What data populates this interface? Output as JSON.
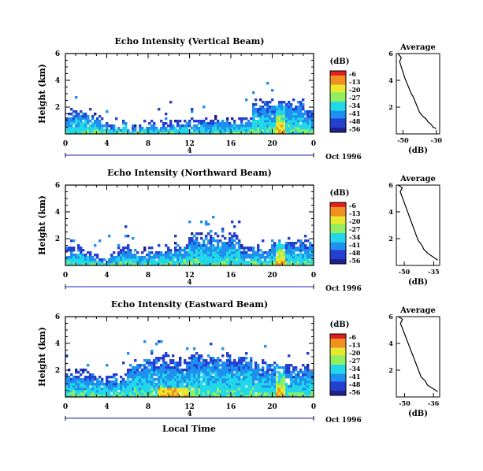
{
  "figure": {
    "xaxis_label": "Local Time",
    "date_label": "Oct 1996",
    "day_marker": "4",
    "colorbar_unit": "(dB)",
    "colorbar_ticks": [
      "-6",
      "-13",
      "-20",
      "-27",
      "-34",
      "-41",
      "-48",
      "-56"
    ],
    "colors": {
      "colormap": [
        "#20208a",
        "#2440d0",
        "#1e90f0",
        "#22d8e8",
        "#90ee60",
        "#e8e830",
        "#f09020",
        "#e02020"
      ],
      "axis": "#000000"
    }
  },
  "chart_data": [
    {
      "type": "heatmap",
      "title": "Echo Intensity (Vertical Beam)",
      "ylabel": "Height (km)",
      "xlim": [
        0,
        24
      ],
      "ylim": [
        0,
        6
      ],
      "xticks": [
        "0",
        "4",
        "8",
        "12",
        "16",
        "20",
        "0"
      ],
      "yticks": [
        "2",
        "4",
        "6"
      ],
      "clim": [
        -56,
        -6
      ],
      "profile": {
        "title": "Average",
        "xlabel": "(dB)",
        "xticks": [
          "-50",
          "-30"
        ],
        "xlim": [
          -54,
          -28
        ],
        "x": [
          -30,
          -32,
          -33,
          -35,
          -36,
          -38,
          -40,
          -41,
          -42,
          -43,
          -44,
          -45,
          -46,
          -47,
          -48,
          -49,
          -50,
          -51,
          -52,
          -51,
          -53
        ],
        "y": [
          0.4,
          0.5,
          0.7,
          0.9,
          1.1,
          1.3,
          1.6,
          1.9,
          2.2,
          2.5,
          2.8,
          3.0,
          3.3,
          3.6,
          3.9,
          4.2,
          4.6,
          5.0,
          5.4,
          5.7,
          6.0
        ]
      }
    },
    {
      "type": "heatmap",
      "title": "Echo Intensity (Northward Beam)",
      "ylabel": "Height (km)",
      "xlim": [
        0,
        24
      ],
      "ylim": [
        0,
        6
      ],
      "xticks": [
        "0",
        "4",
        "8",
        "12",
        "16",
        "20",
        "0"
      ],
      "yticks": [
        "2",
        "4",
        "6"
      ],
      "clim": [
        -56,
        -6
      ],
      "profile": {
        "title": "Average",
        "xlabel": "(dB)",
        "xticks": [
          "-50",
          "-35"
        ],
        "xlim": [
          -54,
          -32
        ],
        "x": [
          -33,
          -34,
          -36,
          -38,
          -40,
          -41,
          -43,
          -44,
          -45,
          -46,
          -47,
          -48,
          -49,
          -50,
          -51,
          -52,
          -51,
          -53
        ],
        "y": [
          0.4,
          0.5,
          0.7,
          0.9,
          1.2,
          1.5,
          1.9,
          2.3,
          2.7,
          3.1,
          3.5,
          3.9,
          4.3,
          4.7,
          5.1,
          5.5,
          5.8,
          6.0
        ]
      }
    },
    {
      "type": "heatmap",
      "title": "Echo Intensity (Eastward Beam)",
      "ylabel": "Height (km)",
      "xlim": [
        0,
        24
      ],
      "ylim": [
        0,
        6
      ],
      "xticks": [
        "0",
        "4",
        "8",
        "12",
        "16",
        "20",
        "0"
      ],
      "yticks": [
        "2",
        "4",
        "6"
      ],
      "clim": [
        -56,
        -6
      ],
      "profile": {
        "title": "Average",
        "xlabel": "(dB)",
        "xticks": [
          "-50",
          "-36"
        ],
        "xlim": [
          -54,
          -33
        ],
        "x": [
          -34,
          -35,
          -37,
          -39,
          -40,
          -42,
          -43,
          -44,
          -45,
          -46,
          -47,
          -48,
          -49,
          -50,
          -51,
          -52,
          -51,
          -53
        ],
        "y": [
          0.4,
          0.5,
          0.7,
          0.9,
          1.2,
          1.5,
          1.9,
          2.3,
          2.7,
          3.1,
          3.5,
          3.9,
          4.3,
          4.7,
          5.1,
          5.5,
          5.8,
          6.0
        ]
      }
    }
  ]
}
